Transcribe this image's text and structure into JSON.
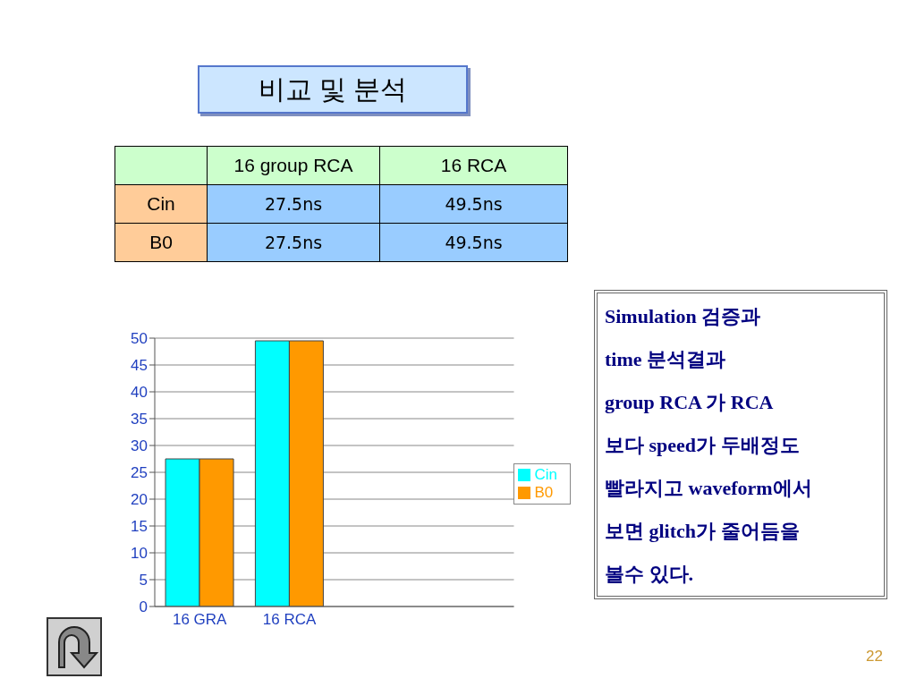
{
  "chart_data": {
    "type": "bar",
    "title": "비교 및 분석",
    "categories": [
      "16 GRA",
      "16 RCA",
      null,
      null
    ],
    "series": [
      {
        "name": "Cin",
        "color": "#00ffff",
        "values": [
          27.5,
          49.5,
          null,
          null
        ]
      },
      {
        "name": "B0",
        "color": "#ff9900",
        "values": [
          27.5,
          49.5,
          null,
          null
        ]
      }
    ],
    "ylim": [
      0,
      50
    ],
    "yticks": [
      0,
      5,
      10,
      15,
      20,
      25,
      30,
      35,
      40,
      45,
      50
    ],
    "grid": "y",
    "legend": "right",
    "annotations": [
      "16 group RCA",
      "16 RCA",
      "27.5ns",
      "49.5ns",
      "27.5ns",
      "49.5ns",
      "Simulation 검증과",
      "time 분석결과",
      "group RCA 가 RCA",
      "보다 speed가 두배정도",
      "빨라지고 waveform에서",
      "보면 glitch가 줄어듬을",
      "볼수 있다.",
      "22"
    ]
  }
}
